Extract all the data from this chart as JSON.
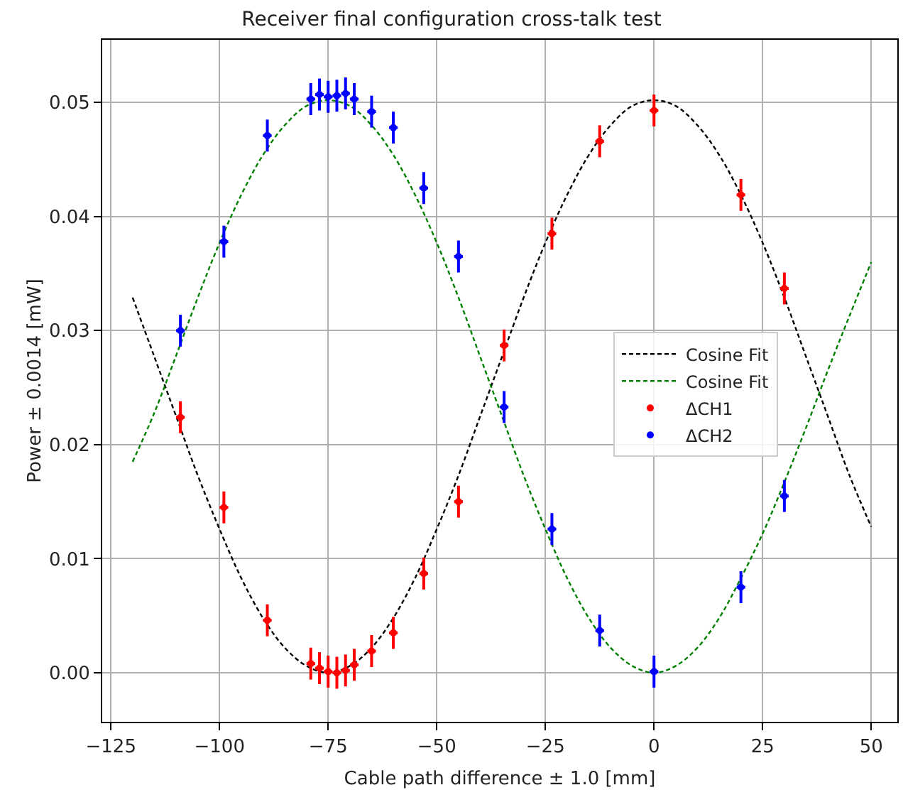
{
  "chart_data": {
    "type": "scatter",
    "title": "Receiver final configuration cross-talk test",
    "xlabel": "Cable path difference ± 1.0 [mm]",
    "ylabel": "Power ± 0.0014 [mW]",
    "xlim": [
      -127,
      56
    ],
    "ylim": [
      -0.0043,
      0.0555
    ],
    "xticks": [
      {
        "value": -125,
        "label": "−125"
      },
      {
        "value": -100,
        "label": "−100"
      },
      {
        "value": -75,
        "label": "−75"
      },
      {
        "value": -50,
        "label": "−50"
      },
      {
        "value": -25,
        "label": "−25"
      },
      0,
      25,
      50
    ],
    "yticks": [
      {
        "value": 0,
        "label": "0.00"
      },
      {
        "value": 0.01,
        "label": "0.01"
      },
      {
        "value": 0.02,
        "label": "0.02"
      },
      {
        "value": 0.03,
        "label": "0.03"
      },
      {
        "value": 0.04,
        "label": "0.04"
      },
      {
        "value": 0.05,
        "label": "0.05"
      }
    ],
    "grid": true,
    "legend": "right",
    "series": [
      {
        "name": "Cosine Fit",
        "type": "line",
        "color": "#000000",
        "line_style": "dashed",
        "marker": "none",
        "x": [
          -120,
          -115,
          -110,
          -105,
          -100,
          -95,
          -90,
          -85,
          -80,
          -75,
          -70,
          -65,
          -60,
          -55,
          -50,
          -45,
          -40,
          -35,
          -30,
          -25,
          -20,
          -15,
          -10,
          -5,
          0,
          5,
          10,
          15,
          20,
          25,
          30,
          35,
          40,
          45,
          50
        ],
        "values": [
          0.0329,
          0.0277,
          0.0225,
          0.0173,
          0.0126,
          0.0083,
          0.0048,
          0.0022,
          0.0006,
          0.0,
          0.0006,
          0.0022,
          0.0048,
          0.0083,
          0.0126,
          0.0173,
          0.0225,
          0.0277,
          0.0329,
          0.0377,
          0.0419,
          0.0454,
          0.048,
          0.0497,
          0.0502,
          0.0497,
          0.048,
          0.0454,
          0.0419,
          0.0377,
          0.0329,
          0.0277,
          0.0225,
          0.0173,
          0.0128
        ]
      },
      {
        "name": "Cosine Fit",
        "type": "line",
        "color": "#008000",
        "line_style": "dashed",
        "marker": "none",
        "x": [
          -120,
          -115,
          -110,
          -105,
          -100,
          -95,
          -90,
          -85,
          -80,
          -75,
          -70,
          -65,
          -60,
          -55,
          -50,
          -45,
          -40,
          -35,
          -30,
          -25,
          -20,
          -15,
          -10,
          -5,
          0,
          5,
          10,
          15,
          20,
          25,
          30,
          35,
          40,
          45,
          50
        ],
        "values": [
          0.0185,
          0.0228,
          0.0278,
          0.0329,
          0.0377,
          0.0419,
          0.0454,
          0.048,
          0.0497,
          0.0502,
          0.0497,
          0.048,
          0.0454,
          0.0419,
          0.0377,
          0.0329,
          0.0277,
          0.0225,
          0.0173,
          0.0126,
          0.0083,
          0.0048,
          0.0022,
          0.0006,
          0.0,
          0.0006,
          0.0022,
          0.0048,
          0.0083,
          0.0122,
          0.0167,
          0.0215,
          0.0265,
          0.0313,
          0.036
        ]
      },
      {
        "name": "ΔCH1",
        "type": "scatter",
        "color": "#ff0000",
        "marker": "circle",
        "x": [
          -109,
          -99,
          -89,
          -79,
          -77,
          -75,
          -73,
          -71,
          -69,
          -65,
          -60,
          -53,
          -45,
          -34.5,
          -23.5,
          -12.5,
          0,
          20,
          30
        ],
        "values": [
          0.0224,
          0.0145,
          0.0046,
          0.0008,
          0.0004,
          0.0001,
          0.0,
          0.0002,
          0.0007,
          0.0019,
          0.0035,
          0.0087,
          0.015,
          0.0287,
          0.0385,
          0.0466,
          0.0493,
          0.0419,
          0.0337
        ],
        "errors": [
          0.0014,
          0.0014,
          0.0014,
          0.0014,
          0.0014,
          0.0014,
          0.0014,
          0.0014,
          0.0014,
          0.0014,
          0.0014,
          0.0014,
          0.0014,
          0.0014,
          0.0014,
          0.0014,
          0.0014,
          0.0014,
          0.0014
        ],
        "xerrors": [
          1,
          1,
          1,
          1,
          1,
          1,
          1,
          1,
          1,
          1,
          1,
          1,
          1,
          1,
          1,
          1,
          1,
          1,
          1
        ]
      },
      {
        "name": "ΔCH2",
        "type": "scatter",
        "color": "#0000ff",
        "marker": "circle",
        "x": [
          -109,
          -99,
          -89,
          -79,
          -77,
          -75,
          -73,
          -71,
          -69,
          -65,
          -60,
          -53,
          -45,
          -34.5,
          -23.5,
          -12.5,
          0,
          20,
          30
        ],
        "values": [
          0.03,
          0.0378,
          0.0471,
          0.0503,
          0.0507,
          0.0505,
          0.0506,
          0.0508,
          0.0503,
          0.0492,
          0.0478,
          0.0425,
          0.0365,
          0.0233,
          0.0126,
          0.0037,
          0.0001,
          0.0075,
          0.0155
        ],
        "errors": [
          0.0014,
          0.0014,
          0.0014,
          0.0014,
          0.0014,
          0.0014,
          0.0014,
          0.0014,
          0.0014,
          0.0014,
          0.0014,
          0.0014,
          0.0014,
          0.0014,
          0.0014,
          0.0014,
          0.0014,
          0.0014,
          0.0014
        ],
        "xerrors": [
          1,
          1,
          1,
          1,
          1,
          1,
          1,
          1,
          1,
          1,
          1,
          1,
          1,
          1,
          1,
          1,
          1,
          1,
          1
        ]
      }
    ]
  }
}
